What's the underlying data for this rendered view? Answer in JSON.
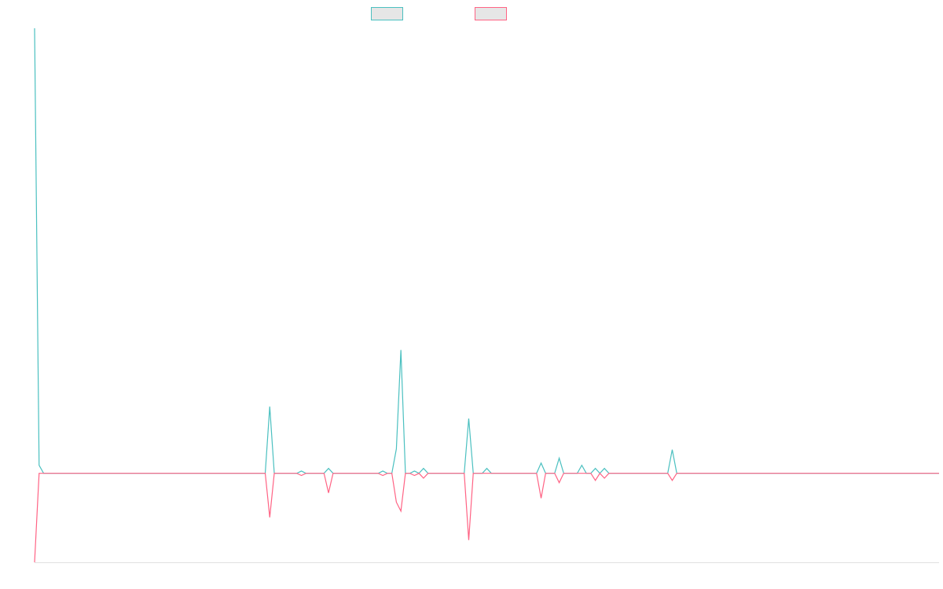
{
  "chart_data": {
    "type": "line",
    "x": [
      0,
      1,
      2,
      51,
      52,
      53,
      58,
      59,
      60,
      64,
      65,
      66,
      76,
      77,
      78,
      79,
      80,
      81,
      82,
      83,
      84,
      85,
      86,
      87,
      95,
      96,
      97,
      99,
      100,
      101,
      111,
      112,
      113,
      115,
      116,
      117,
      120,
      121,
      122,
      123,
      124,
      125,
      126,
      127,
      140,
      141,
      142,
      200
    ],
    "series": [
      {
        "color": "#4bc0c0",
        "values": [
          100,
          1.8,
          0,
          0,
          15,
          0,
          0,
          0.5,
          0,
          0,
          1.1,
          0,
          0,
          0.5,
          0,
          0,
          5.5,
          27.7,
          0,
          0,
          0.5,
          0,
          1.1,
          0,
          0,
          12.3,
          0,
          0,
          1.1,
          0,
          0,
          2.3,
          0,
          0,
          3.4,
          0,
          0,
          1.8,
          0,
          0,
          1.1,
          0,
          1.1,
          0,
          0,
          5.3,
          0,
          0
        ]
      },
      {
        "color": "#ff6384",
        "values": [
          -20,
          0,
          0,
          0,
          -9.9,
          0,
          0,
          -0.5,
          0,
          0,
          -4.4,
          0,
          0,
          -0.5,
          0,
          0,
          -6.5,
          -8.5,
          0,
          0,
          -0.5,
          0,
          -1.1,
          0,
          0,
          -15,
          0,
          0,
          0,
          0,
          0,
          -5.6,
          0,
          0,
          -2.1,
          0,
          0,
          0,
          0,
          0,
          -1.6,
          0,
          -1.1,
          0,
          0,
          -1.6,
          0,
          0
        ]
      }
    ],
    "xlim": [
      0,
      200
    ],
    "ylim": [
      -20,
      100
    ],
    "legend": "top"
  }
}
